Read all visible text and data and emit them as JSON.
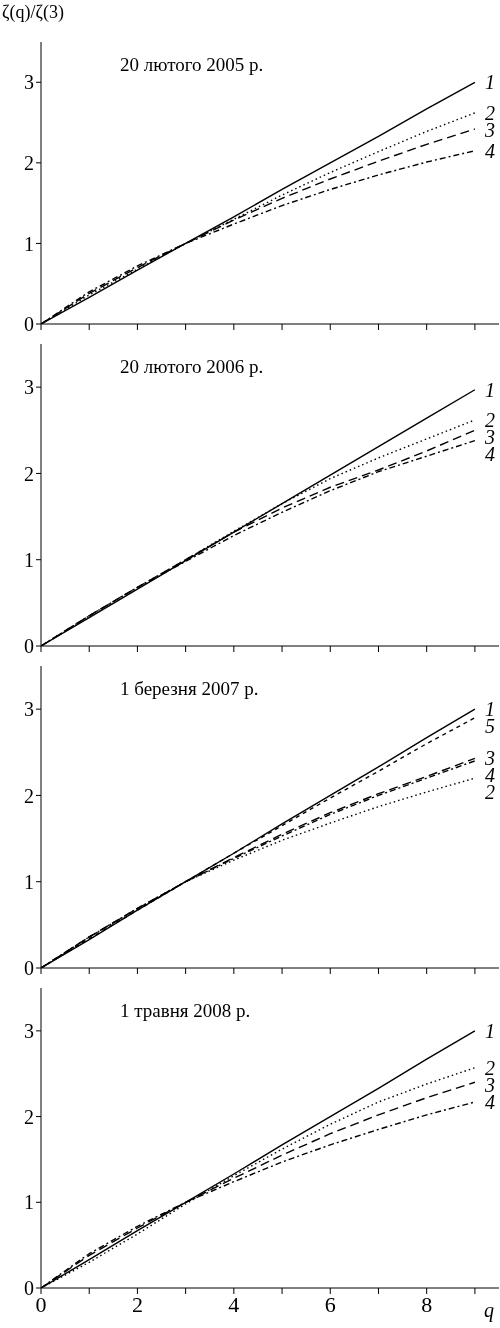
{
  "chart_data": [
    {
      "type": "line",
      "title": "20 лютого 2005 р.",
      "ylabel": "ζ(q)/ζ(3)",
      "x": [
        0,
        1,
        2,
        3,
        4,
        5,
        6,
        7,
        8,
        9
      ],
      "xlim": [
        0,
        9.5
      ],
      "xticks": [
        {
          "value": 0,
          "label": null
        },
        {
          "value": 1,
          "label": null
        },
        {
          "value": 2,
          "label": null
        },
        {
          "value": 3,
          "label": null
        },
        {
          "value": 4,
          "label": null
        },
        {
          "value": 5,
          "label": null
        },
        {
          "value": 6,
          "label": null
        },
        {
          "value": 7,
          "label": null
        },
        {
          "value": 8,
          "label": null
        },
        {
          "value": 9,
          "label": null
        }
      ],
      "ylim": [
        0,
        3.5
      ],
      "yticks": [
        0,
        1,
        2,
        3
      ],
      "tick_labels": "y",
      "marker": "none",
      "series": [
        {
          "name": "1",
          "color": "#000000",
          "line_style": "solid",
          "values": [
            0,
            0.33,
            0.67,
            1,
            1.33,
            1.67,
            2,
            2.33,
            2.67,
            3
          ]
        },
        {
          "name": "2",
          "color": "#000000",
          "line_style": "dotted",
          "values": [
            0,
            0.36,
            0.68,
            1,
            1.3,
            1.6,
            1.88,
            2.14,
            2.39,
            2.62
          ]
        },
        {
          "name": "3",
          "color": "#000000",
          "line_style": "dashed",
          "values": [
            0,
            0.38,
            0.7,
            1,
            1.29,
            1.56,
            1.8,
            2.02,
            2.23,
            2.42
          ]
        },
        {
          "name": "4",
          "color": "#000000",
          "line_style": "dashdot",
          "values": [
            0,
            0.4,
            0.72,
            1,
            1.24,
            1.47,
            1.67,
            1.85,
            2.01,
            2.15
          ]
        }
      ]
    },
    {
      "type": "line",
      "title": "20 лютого 2006 р.",
      "x": [
        0,
        1,
        2,
        3,
        4,
        5,
        6,
        7,
        8,
        9
      ],
      "xlim": [
        0,
        9.5
      ],
      "xticks": [
        {
          "value": 0,
          "label": null
        },
        {
          "value": 1,
          "label": null
        },
        {
          "value": 2,
          "label": null
        },
        {
          "value": 3,
          "label": null
        },
        {
          "value": 4,
          "label": null
        },
        {
          "value": 5,
          "label": null
        },
        {
          "value": 6,
          "label": null
        },
        {
          "value": 7,
          "label": null
        },
        {
          "value": 8,
          "label": null
        },
        {
          "value": 9,
          "label": null
        }
      ],
      "ylim": [
        0,
        3.5
      ],
      "yticks": [
        0,
        1,
        2,
        3
      ],
      "tick_labels": "y",
      "marker": "none",
      "series": [
        {
          "name": "1",
          "color": "#000000",
          "line_style": "solid",
          "values": [
            0,
            0.33,
            0.66,
            0.99,
            1.32,
            1.65,
            1.98,
            2.31,
            2.64,
            2.97
          ]
        },
        {
          "name": "2",
          "color": "#000000",
          "line_style": "dotted",
          "values": [
            0,
            0.35,
            0.68,
            1,
            1.33,
            1.65,
            1.94,
            2.18,
            2.4,
            2.62
          ]
        },
        {
          "name": "3",
          "color": "#000000",
          "line_style": "dashed",
          "values": [
            0,
            0.35,
            0.68,
            1,
            1.32,
            1.6,
            1.84,
            2.04,
            2.26,
            2.5
          ]
        },
        {
          "name": "4",
          "color": "#000000",
          "line_style": "dashdot",
          "values": [
            0,
            0.35,
            0.68,
            0.98,
            1.28,
            1.55,
            1.8,
            2.02,
            2.2,
            2.38
          ]
        }
      ]
    },
    {
      "type": "line",
      "title": "1 березня 2007 р.",
      "x": [
        0,
        1,
        2,
        3,
        4,
        5,
        6,
        7,
        8,
        9
      ],
      "xlim": [
        0,
        9.5
      ],
      "xticks": [
        {
          "value": 0,
          "label": null
        },
        {
          "value": 1,
          "label": null
        },
        {
          "value": 2,
          "label": null
        },
        {
          "value": 3,
          "label": null
        },
        {
          "value": 4,
          "label": null
        },
        {
          "value": 5,
          "label": null
        },
        {
          "value": 6,
          "label": null
        },
        {
          "value": 7,
          "label": null
        },
        {
          "value": 8,
          "label": null
        },
        {
          "value": 9,
          "label": null
        }
      ],
      "ylim": [
        0,
        3.5
      ],
      "yticks": [
        0,
        1,
        2,
        3
      ],
      "tick_labels": "y",
      "marker": "none",
      "series": [
        {
          "name": "1",
          "color": "#000000",
          "line_style": "solid",
          "values": [
            0,
            0.33,
            0.67,
            1,
            1.33,
            1.67,
            2,
            2.33,
            2.67,
            3
          ]
        },
        {
          "name": "2",
          "color": "#000000",
          "line_style": "dotted",
          "values": [
            0,
            0.36,
            0.69,
            1,
            1.25,
            1.48,
            1.68,
            1.87,
            2.04,
            2.2
          ]
        },
        {
          "name": "3",
          "color": "#000000",
          "line_style": "dashed",
          "values": [
            0,
            0.36,
            0.69,
            1,
            1.28,
            1.55,
            1.8,
            2.02,
            2.22,
            2.43
          ]
        },
        {
          "name": "4",
          "color": "#000000",
          "line_style": "dashdot",
          "values": [
            0,
            0.36,
            0.69,
            1,
            1.27,
            1.53,
            1.78,
            2,
            2.2,
            2.4
          ]
        },
        {
          "name": "5",
          "color": "#000000",
          "line_style": "shortdash",
          "values": [
            0,
            0.34,
            0.67,
            1,
            1.33,
            1.65,
            1.97,
            2.28,
            2.6,
            2.9
          ]
        }
      ]
    },
    {
      "type": "line",
      "title": "1 травня 2008 р.",
      "xlabel": "q",
      "x": [
        0,
        1,
        2,
        3,
        4,
        5,
        6,
        7,
        8,
        9
      ],
      "xlim": [
        0,
        9.5
      ],
      "xticks": [
        0,
        {
          "value": 1,
          "label": null
        },
        2,
        {
          "value": 3,
          "label": null
        },
        4,
        {
          "value": 5,
          "label": null
        },
        6,
        {
          "value": 7,
          "label": null
        },
        8,
        {
          "value": 9,
          "label": null
        }
      ],
      "ylim": [
        0,
        3.5
      ],
      "yticks": [
        0,
        1,
        2,
        3
      ],
      "marker": "none",
      "series": [
        {
          "name": "1",
          "color": "#000000",
          "line_style": "solid",
          "values": [
            0,
            0.33,
            0.67,
            1,
            1.33,
            1.67,
            2,
            2.33,
            2.67,
            3
          ]
        },
        {
          "name": "2",
          "color": "#000000",
          "line_style": "dotted",
          "values": [
            0,
            0.3,
            0.63,
            0.98,
            1.31,
            1.62,
            1.91,
            2.17,
            2.38,
            2.57
          ]
        },
        {
          "name": "3",
          "color": "#000000",
          "line_style": "dashed",
          "values": [
            0,
            0.38,
            0.7,
            1,
            1.28,
            1.55,
            1.8,
            2.02,
            2.22,
            2.4
          ]
        },
        {
          "name": "4",
          "color": "#000000",
          "line_style": "dashdot",
          "values": [
            0,
            0.4,
            0.72,
            1,
            1.24,
            1.47,
            1.67,
            1.85,
            2.02,
            2.17
          ]
        }
      ]
    }
  ]
}
